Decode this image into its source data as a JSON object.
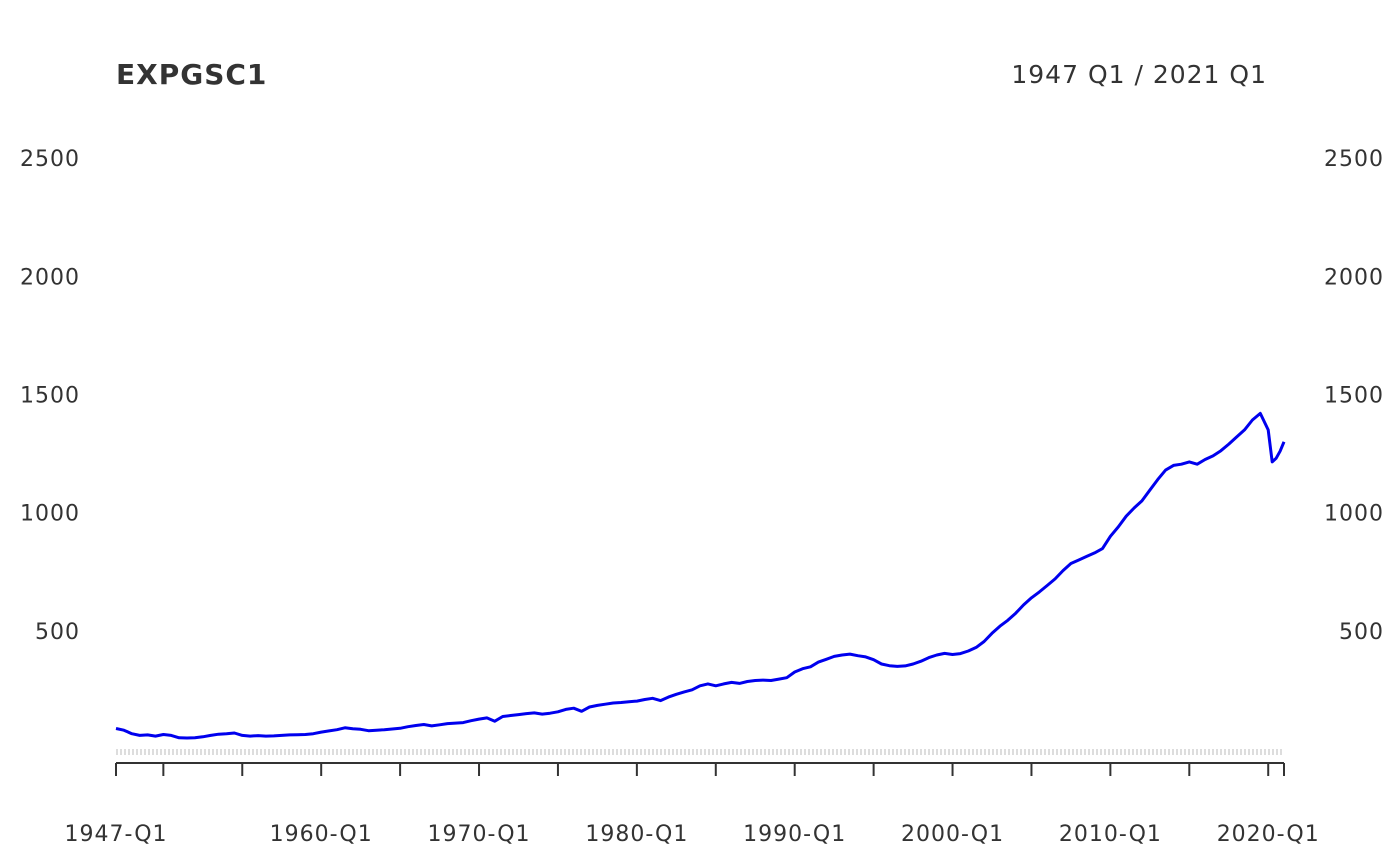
{
  "chart_data": {
    "type": "line",
    "title": "EXPGSC1",
    "date_range_label": "1947 Q1 / 2021 Q1",
    "xlabel": "",
    "ylabel": "",
    "x_start": 1947.0,
    "x_end": 2021.0,
    "x_tick_labels": [
      {
        "label": "1947-Q1",
        "x": 1947.0
      },
      {
        "label": "1960-Q1",
        "x": 1960.0
      },
      {
        "label": "1970-Q1",
        "x": 1970.0
      },
      {
        "label": "1980-Q1",
        "x": 1980.0
      },
      {
        "label": "1990-Q1",
        "x": 1990.0
      },
      {
        "label": "2000-Q1",
        "x": 2000.0
      },
      {
        "label": "2010-Q1",
        "x": 2010.0
      },
      {
        "label": "2020-Q1",
        "x": 2020.0
      }
    ],
    "x_minor_ticks": [
      1947,
      1950,
      1955,
      1960,
      1965,
      1970,
      1975,
      1980,
      1985,
      1990,
      1995,
      2000,
      2005,
      2010,
      2015,
      2020,
      2021
    ],
    "ylim": [
      -60,
      2600
    ],
    "y_ticks": [
      500,
      1000,
      1500,
      2000,
      2500
    ],
    "grid": false,
    "line_color": "#0000ee",
    "series": [
      {
        "values": [
          [
            1947.0,
            87
          ],
          [
            1947.5,
            80
          ],
          [
            1948.0,
            65
          ],
          [
            1948.5,
            58
          ],
          [
            1949.0,
            60
          ],
          [
            1949.5,
            55
          ],
          [
            1950.0,
            62
          ],
          [
            1950.5,
            58
          ],
          [
            1951.0,
            48
          ],
          [
            1951.5,
            47
          ],
          [
            1952.0,
            48
          ],
          [
            1952.5,
            52
          ],
          [
            1953.0,
            58
          ],
          [
            1953.5,
            63
          ],
          [
            1954.0,
            65
          ],
          [
            1954.5,
            68
          ],
          [
            1955.0,
            58
          ],
          [
            1955.5,
            55
          ],
          [
            1956.0,
            57
          ],
          [
            1956.5,
            55
          ],
          [
            1957.0,
            56
          ],
          [
            1957.5,
            58
          ],
          [
            1958.0,
            60
          ],
          [
            1958.5,
            61
          ],
          [
            1959.0,
            62
          ],
          [
            1959.5,
            65
          ],
          [
            1960.0,
            72
          ],
          [
            1960.5,
            77
          ],
          [
            1961.0,
            82
          ],
          [
            1961.5,
            90
          ],
          [
            1962.0,
            86
          ],
          [
            1962.5,
            84
          ],
          [
            1963.0,
            78
          ],
          [
            1963.5,
            80
          ],
          [
            1964.0,
            82
          ],
          [
            1964.5,
            85
          ],
          [
            1965.0,
            88
          ],
          [
            1965.5,
            95
          ],
          [
            1966.0,
            100
          ],
          [
            1966.5,
            104
          ],
          [
            1967.0,
            98
          ],
          [
            1967.5,
            103
          ],
          [
            1968.0,
            108
          ],
          [
            1968.5,
            110
          ],
          [
            1969.0,
            112
          ],
          [
            1969.5,
            120
          ],
          [
            1970.0,
            127
          ],
          [
            1970.5,
            132
          ],
          [
            1971.0,
            118
          ],
          [
            1971.5,
            138
          ],
          [
            1972.0,
            142
          ],
          [
            1972.5,
            146
          ],
          [
            1973.0,
            150
          ],
          [
            1973.5,
            153
          ],
          [
            1974.0,
            148
          ],
          [
            1974.5,
            152
          ],
          [
            1975.0,
            158
          ],
          [
            1975.5,
            168
          ],
          [
            1976.0,
            173
          ],
          [
            1976.5,
            160
          ],
          [
            1977.0,
            178
          ],
          [
            1977.5,
            185
          ],
          [
            1978.0,
            190
          ],
          [
            1978.5,
            195
          ],
          [
            1979.0,
            197
          ],
          [
            1979.5,
            200
          ],
          [
            1980.0,
            203
          ],
          [
            1980.5,
            210
          ],
          [
            1981.0,
            215
          ],
          [
            1981.5,
            205
          ],
          [
            1982.0,
            220
          ],
          [
            1982.5,
            232
          ],
          [
            1983.0,
            242
          ],
          [
            1983.5,
            251
          ],
          [
            1984.0,
            268
          ],
          [
            1984.5,
            276
          ],
          [
            1985.0,
            268
          ],
          [
            1985.5,
            276
          ],
          [
            1986.0,
            282
          ],
          [
            1986.5,
            278
          ],
          [
            1987.0,
            286
          ],
          [
            1987.5,
            290
          ],
          [
            1988.0,
            292
          ],
          [
            1988.5,
            290
          ],
          [
            1989.0,
            296
          ],
          [
            1989.5,
            302
          ],
          [
            1990.0,
            326
          ],
          [
            1990.5,
            340
          ],
          [
            1991.0,
            348
          ],
          [
            1991.5,
            368
          ],
          [
            1992.0,
            380
          ],
          [
            1992.5,
            392
          ],
          [
            1993.0,
            398
          ],
          [
            1993.5,
            402
          ],
          [
            1994.0,
            395
          ],
          [
            1994.5,
            390
          ],
          [
            1995.0,
            378
          ],
          [
            1995.5,
            360
          ],
          [
            1996.0,
            353
          ],
          [
            1996.5,
            350
          ],
          [
            1997.0,
            352
          ],
          [
            1997.5,
            360
          ],
          [
            1998.0,
            372
          ],
          [
            1998.5,
            387
          ],
          [
            1999.0,
            398
          ],
          [
            1999.5,
            405
          ],
          [
            2000.0,
            400
          ],
          [
            2000.5,
            404
          ],
          [
            2001.0,
            415
          ],
          [
            2001.5,
            430
          ],
          [
            2002.0,
            455
          ],
          [
            2002.5,
            490
          ],
          [
            2003.0,
            520
          ],
          [
            2003.5,
            545
          ],
          [
            2004.0,
            575
          ],
          [
            2004.5,
            610
          ],
          [
            2005.0,
            640
          ],
          [
            2005.5,
            665
          ],
          [
            2006.0,
            692
          ],
          [
            2006.5,
            720
          ],
          [
            2007.0,
            755
          ],
          [
            2007.5,
            785
          ],
          [
            2008.0,
            800
          ],
          [
            2008.5,
            815
          ],
          [
            2009.0,
            830
          ],
          [
            2009.5,
            848
          ],
          [
            2010.0,
            900
          ],
          [
            2010.5,
            940
          ],
          [
            2011.0,
            985
          ],
          [
            2011.5,
            1020
          ],
          [
            2012.0,
            1050
          ],
          [
            2012.5,
            1095
          ],
          [
            2013.0,
            1140
          ],
          [
            2013.5,
            1180
          ],
          [
            2014.0,
            1200
          ],
          [
            2014.5,
            1205
          ],
          [
            2015.0,
            1215
          ],
          [
            2015.5,
            1205
          ],
          [
            2016.0,
            1225
          ],
          [
            2016.5,
            1240
          ],
          [
            2017.0,
            1262
          ],
          [
            2017.5,
            1290
          ],
          [
            2018.0,
            1320
          ],
          [
            2018.5,
            1350
          ],
          [
            2019.0,
            1392
          ],
          [
            2019.5,
            1420
          ],
          [
            2020.0,
            1350
          ],
          [
            2020.25,
            1215
          ],
          [
            2020.5,
            1230
          ],
          [
            2020.75,
            1260
          ],
          [
            2021.0,
            1300
          ]
        ]
      }
    ]
  }
}
